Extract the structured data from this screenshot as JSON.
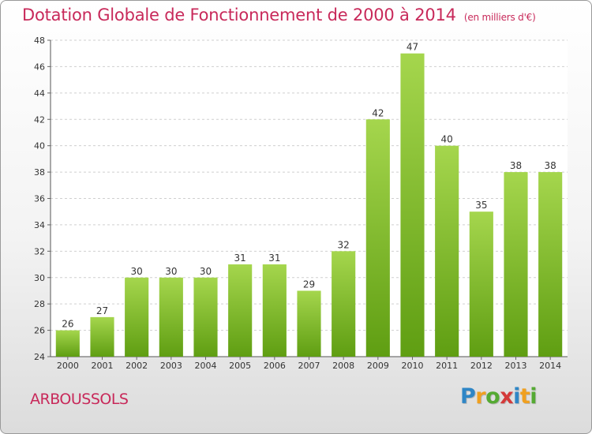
{
  "title": "Dotation Globale de Fonctionnement de 2000 à 2014",
  "unit_note": "(en milliers d'€)",
  "place_name": "ARBOUSSOLS",
  "brand": {
    "letters": [
      {
        "char": "P",
        "color": "#2f86c6"
      },
      {
        "char": "r",
        "color": "#f0a020"
      },
      {
        "char": "o",
        "color": "#55aa33"
      },
      {
        "char": "x",
        "color": "#d43a3a"
      },
      {
        "char": "i",
        "color": "#2f86c6"
      },
      {
        "char": "t",
        "color": "#f0a020"
      },
      {
        "char": "i",
        "color": "#55aa33"
      }
    ]
  },
  "colors": {
    "title": "#c8295a",
    "bar_top": "#a5d64d",
    "bar_bottom": "#5f9e12"
  },
  "chart_data": {
    "type": "bar",
    "categories": [
      "2000",
      "2001",
      "2002",
      "2003",
      "2004",
      "2005",
      "2006",
      "2007",
      "2008",
      "2009",
      "2010",
      "2011",
      "2012",
      "2013",
      "2014"
    ],
    "values": [
      26,
      27,
      30,
      30,
      30,
      31,
      31,
      29,
      32,
      42,
      47,
      40,
      35,
      38,
      38
    ],
    "ylim": [
      24,
      48
    ],
    "yticks": [
      24,
      26,
      28,
      30,
      32,
      34,
      36,
      38,
      40,
      42,
      44,
      46,
      48
    ],
    "grid": true,
    "data_labels": true
  }
}
